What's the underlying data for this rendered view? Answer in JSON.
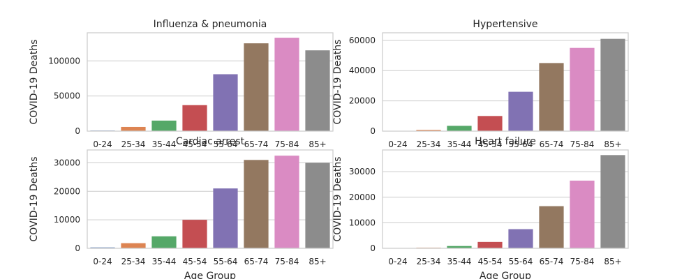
{
  "chart_data": [
    {
      "type": "bar",
      "title": "Influenza & pneumonia",
      "xlabel": "",
      "ylabel": "COVID-19 Deaths",
      "categories": [
        "0-24",
        "25-34",
        "35-44",
        "45-54",
        "55-64",
        "65-74",
        "75-84",
        "85+"
      ],
      "values": [
        800,
        6000,
        15000,
        37000,
        81000,
        125000,
        133000,
        115000
      ],
      "ylim": [
        0,
        140000
      ],
      "yticks": [
        0,
        50000,
        100000
      ],
      "grid": true
    },
    {
      "type": "bar",
      "title": "Hypertensive",
      "xlabel": "",
      "ylabel": "COVID-19 Deaths",
      "categories": [
        "0-24",
        "25-34",
        "35-44",
        "45-54",
        "55-64",
        "65-74",
        "75-84",
        "85+"
      ],
      "values": [
        80,
        800,
        3500,
        10000,
        26000,
        45000,
        55000,
        61000
      ],
      "ylim": [
        0,
        65000
      ],
      "yticks": [
        0,
        20000,
        40000,
        60000
      ],
      "grid": true
    },
    {
      "type": "bar",
      "title": "Cardiac arrest",
      "xlabel": "Age Group",
      "ylabel": "COVID-19 Deaths",
      "categories": [
        "0-24",
        "25-34",
        "35-44",
        "45-54",
        "55-64",
        "65-74",
        "75-84",
        "85+"
      ],
      "values": [
        300,
        1800,
        4200,
        10000,
        21000,
        31000,
        32500,
        30000
      ],
      "ylim": [
        0,
        34500
      ],
      "yticks": [
        0,
        10000,
        20000,
        30000
      ],
      "grid": true
    },
    {
      "type": "bar",
      "title": "Heart failure",
      "xlabel": "Age Group",
      "ylabel": "COVID-19 Deaths",
      "categories": [
        "0-24",
        "25-34",
        "35-44",
        "45-54",
        "55-64",
        "65-74",
        "75-84",
        "85+"
      ],
      "values": [
        60,
        250,
        900,
        2500,
        7500,
        16500,
        26500,
        36500
      ],
      "ylim": [
        0,
        38500
      ],
      "yticks": [
        0,
        10000,
        20000,
        30000
      ],
      "grid": true
    }
  ],
  "colors": [
    "#4c72b0",
    "#dd8452",
    "#55a868",
    "#c44e52",
    "#8172b3",
    "#937860",
    "#da8bc3",
    "#8c8c8c"
  ]
}
